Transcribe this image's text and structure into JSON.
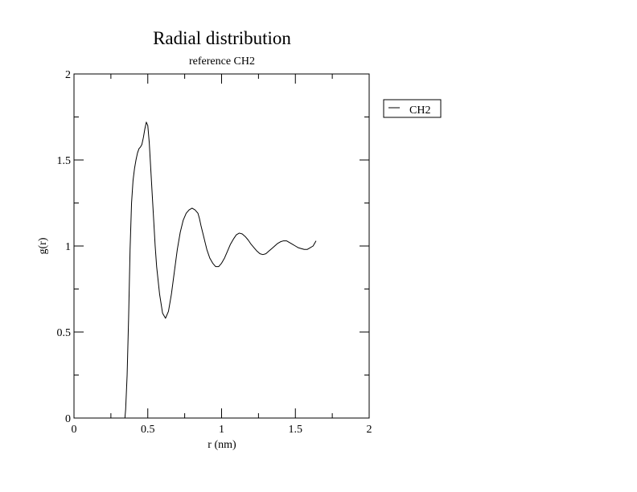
{
  "chart_data": {
    "type": "line",
    "title": "Radial distribution",
    "subtitle": "reference CH2",
    "xlabel": "r (nm)",
    "ylabel": "g(r)",
    "xlim": [
      0,
      2
    ],
    "ylim": [
      0,
      2
    ],
    "x_ticks": [
      0,
      0.5,
      1,
      1.5,
      2
    ],
    "x_tick_labels": [
      "0",
      "0.5",
      "1",
      "1.5",
      "2"
    ],
    "y_ticks": [
      0,
      0.5,
      1,
      1.5,
      2
    ],
    "y_tick_labels": [
      "0",
      "0.5",
      "1",
      "1.5",
      "2"
    ],
    "grid": false,
    "legend_position": "right",
    "series": [
      {
        "name": "CH2",
        "color": "#000000",
        "x": [
          0.34,
          0.345,
          0.35,
          0.36,
          0.37,
          0.38,
          0.39,
          0.4,
          0.41,
          0.42,
          0.43,
          0.44,
          0.45,
          0.46,
          0.47,
          0.48,
          0.49,
          0.5,
          0.51,
          0.52,
          0.53,
          0.54,
          0.55,
          0.56,
          0.58,
          0.6,
          0.62,
          0.64,
          0.66,
          0.68,
          0.7,
          0.72,
          0.74,
          0.76,
          0.78,
          0.8,
          0.82,
          0.84,
          0.85,
          0.86,
          0.88,
          0.9,
          0.92,
          0.94,
          0.96,
          0.98,
          1.0,
          1.02,
          1.04,
          1.06,
          1.08,
          1.1,
          1.12,
          1.14,
          1.16,
          1.18,
          1.2,
          1.22,
          1.24,
          1.26,
          1.28,
          1.3,
          1.32,
          1.34,
          1.36,
          1.38,
          1.4,
          1.42,
          1.44,
          1.46,
          1.48,
          1.5,
          1.52,
          1.54,
          1.56,
          1.58,
          1.6,
          1.62,
          1.64
        ],
        "values": [
          0.0,
          0.0,
          0.05,
          0.25,
          0.58,
          0.98,
          1.25,
          1.38,
          1.45,
          1.5,
          1.54,
          1.565,
          1.575,
          1.59,
          1.63,
          1.68,
          1.72,
          1.7,
          1.6,
          1.45,
          1.3,
          1.15,
          1.0,
          0.88,
          0.72,
          0.61,
          0.58,
          0.62,
          0.72,
          0.85,
          0.98,
          1.08,
          1.15,
          1.19,
          1.21,
          1.22,
          1.21,
          1.19,
          1.16,
          1.12,
          1.05,
          0.98,
          0.93,
          0.9,
          0.88,
          0.88,
          0.9,
          0.93,
          0.97,
          1.01,
          1.04,
          1.065,
          1.075,
          1.07,
          1.055,
          1.035,
          1.01,
          0.99,
          0.97,
          0.955,
          0.95,
          0.955,
          0.97,
          0.985,
          1.0,
          1.015,
          1.025,
          1.03,
          1.03,
          1.02,
          1.01,
          1.0,
          0.99,
          0.985,
          0.98,
          0.98,
          0.99,
          1.0,
          1.03
        ]
      }
    ]
  }
}
